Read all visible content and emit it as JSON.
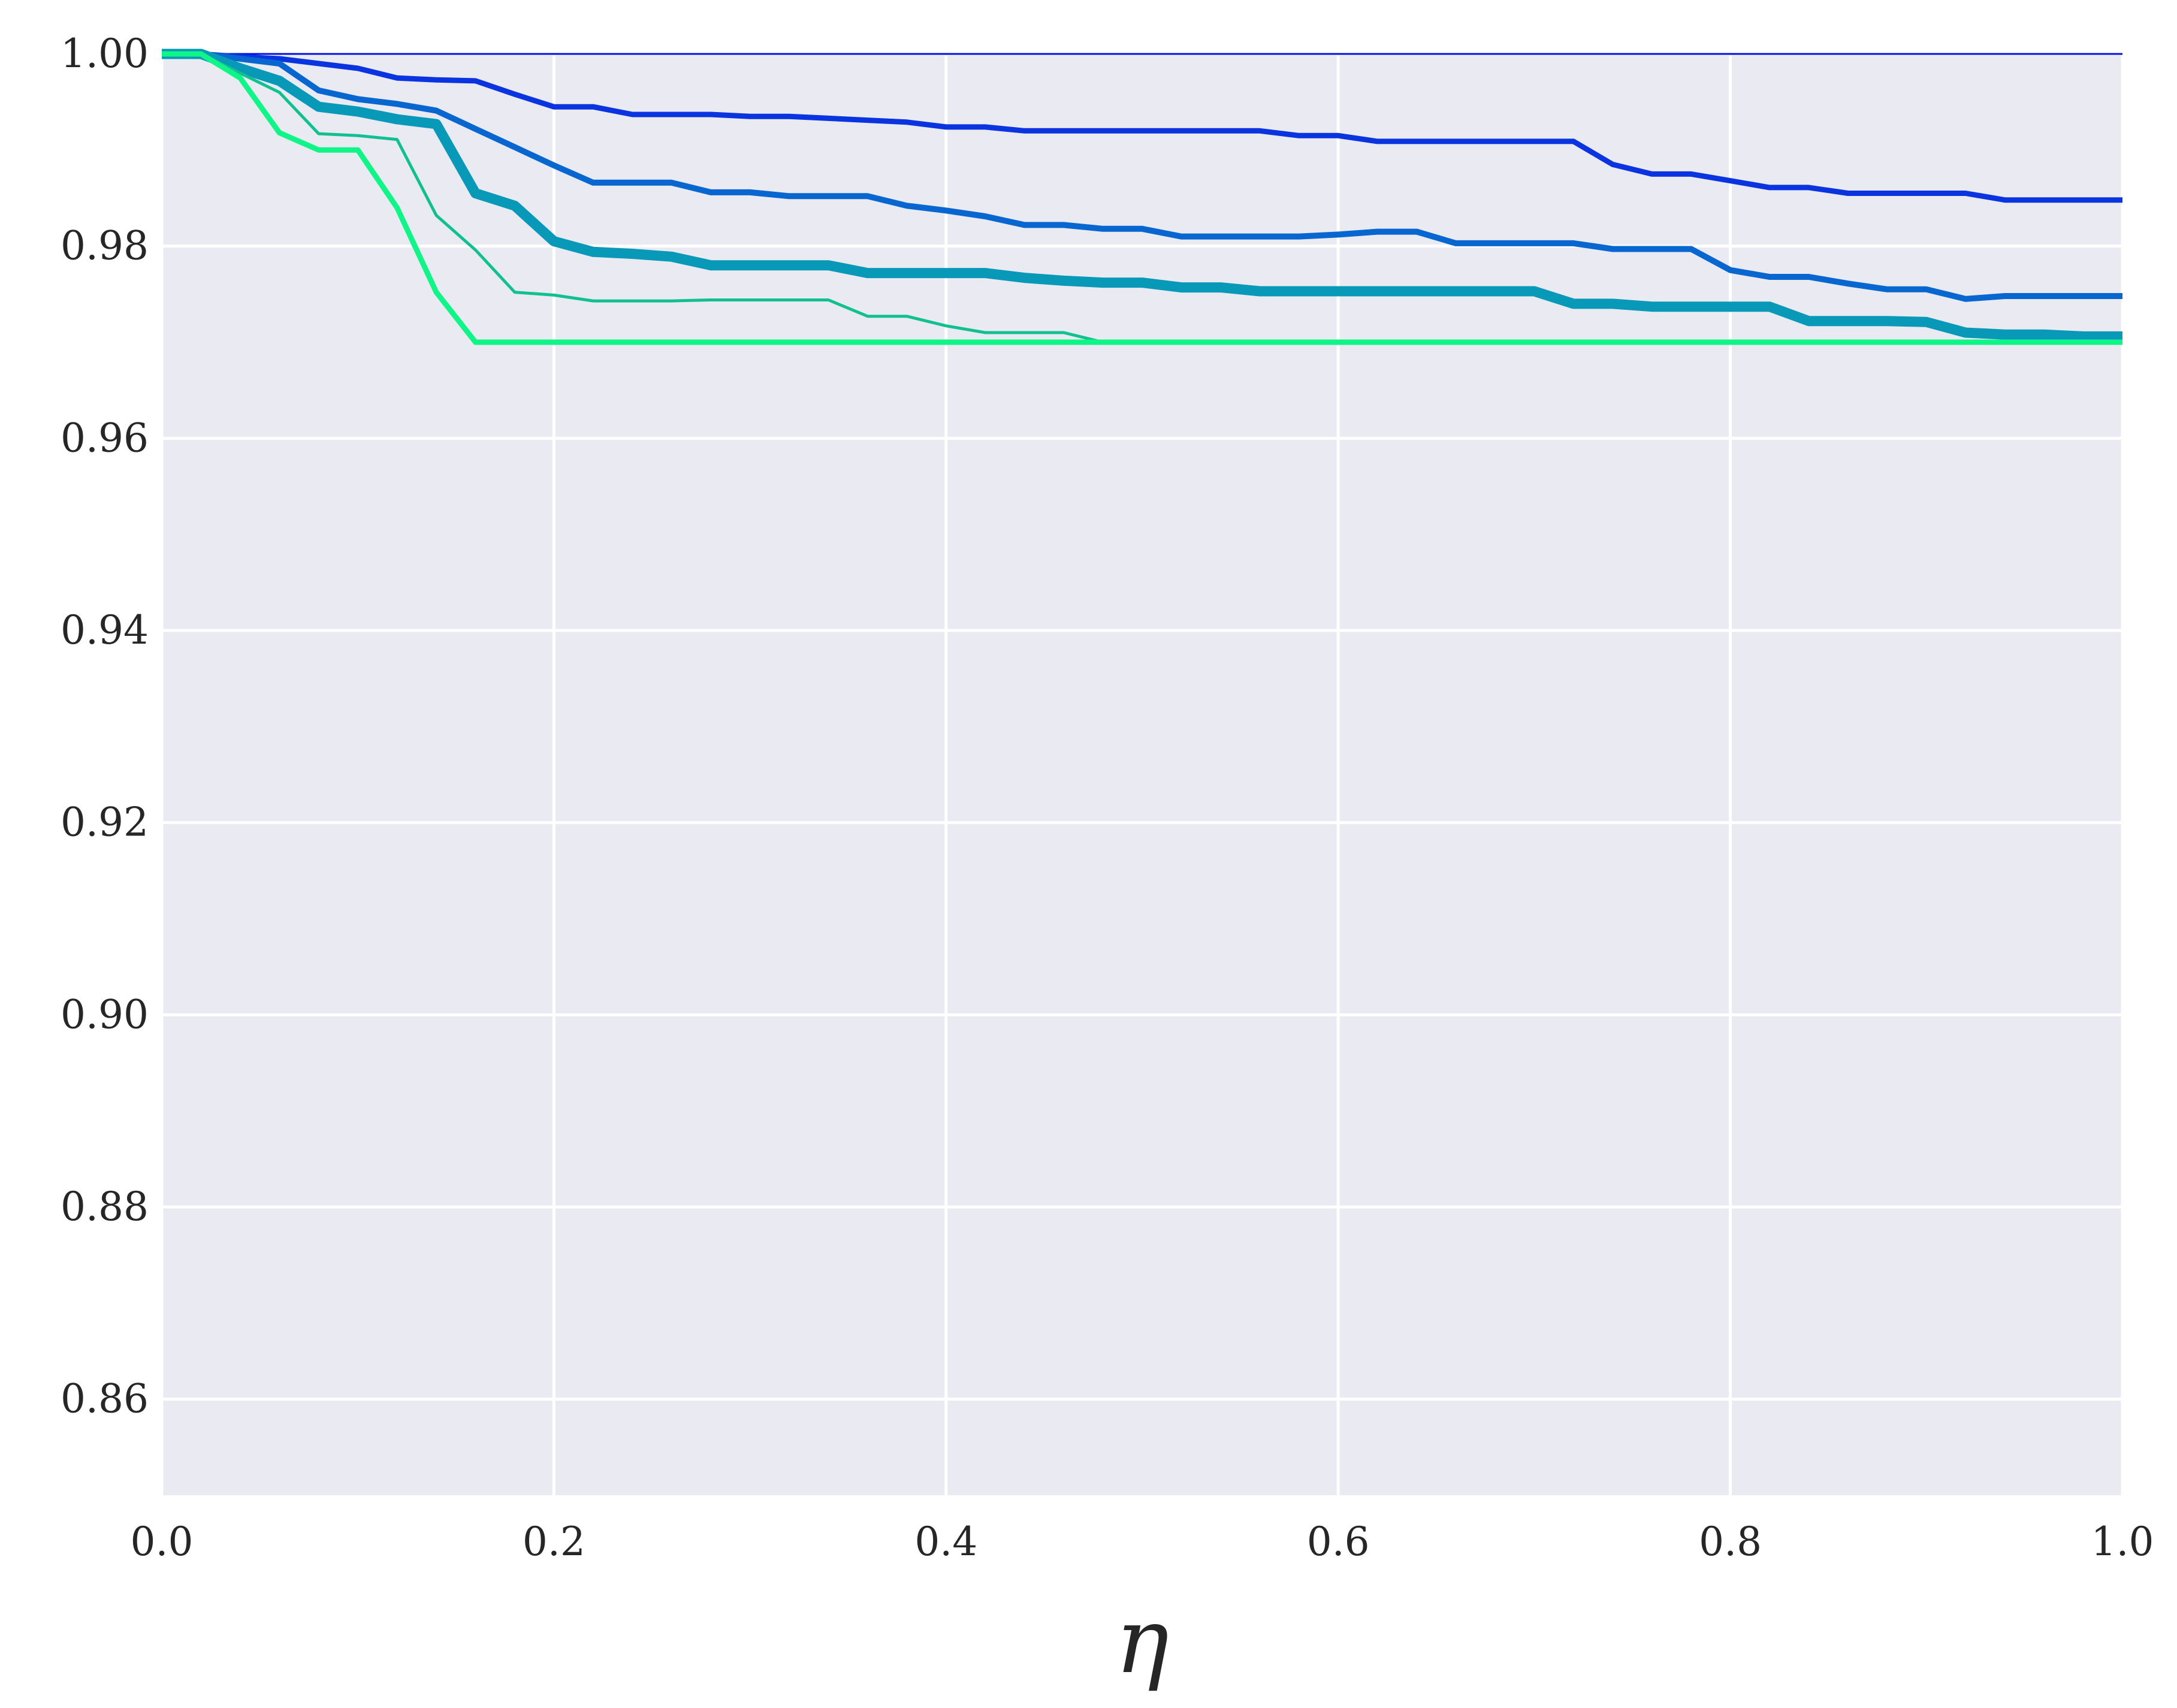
{
  "chart_data": {
    "type": "line",
    "xlabel": "η",
    "ylabel": "",
    "xlim": [
      0.0,
      1.0
    ],
    "ylim": [
      0.85,
      1.0
    ],
    "x_ticks": [
      "0.0",
      "0.2",
      "0.4",
      "0.6",
      "0.8",
      "1.0"
    ],
    "y_ticks": [
      "0.86",
      "0.88",
      "0.90",
      "0.92",
      "0.94",
      "0.96",
      "0.98",
      "1.00"
    ],
    "grid": true,
    "background_color": "#eaeaf2",
    "grid_color": "#ffffff",
    "x": [
      0.0,
      0.02,
      0.04,
      0.06,
      0.08,
      0.1,
      0.12,
      0.14,
      0.16,
      0.18,
      0.2,
      0.22,
      0.24,
      0.26,
      0.28,
      0.3,
      0.32,
      0.34,
      0.36,
      0.38,
      0.4,
      0.42,
      0.44,
      0.46,
      0.48,
      0.5,
      0.52,
      0.54,
      0.56,
      0.58,
      0.6,
      0.62,
      0.64,
      0.66,
      0.68,
      0.7,
      0.72,
      0.74,
      0.76,
      0.78,
      0.8,
      0.82,
      0.84,
      0.86,
      0.88,
      0.9,
      0.92,
      0.94,
      0.96,
      0.98,
      1.0
    ],
    "series": [
      {
        "color": "#0010e0",
        "width": 3,
        "values": [
          1.0,
          1.0,
          1.0,
          1.0,
          1.0,
          1.0,
          1.0,
          1.0,
          1.0,
          1.0,
          1.0,
          1.0,
          1.0,
          1.0,
          1.0,
          1.0,
          1.0,
          1.0,
          1.0,
          1.0,
          1.0,
          1.0,
          1.0,
          1.0,
          1.0,
          1.0,
          1.0,
          1.0,
          1.0,
          1.0,
          1.0,
          1.0,
          1.0,
          1.0,
          1.0,
          1.0,
          1.0,
          1.0,
          1.0,
          1.0,
          1.0,
          1.0,
          1.0,
          1.0,
          1.0,
          1.0,
          1.0,
          1.0,
          1.0,
          1.0,
          1.0
        ]
      },
      {
        "color": "#0a34e0",
        "width": 9,
        "values": [
          1.0,
          1.0,
          0.9997,
          0.9995,
          0.999,
          0.9985,
          0.9975,
          0.9973,
          0.9972,
          0.9958,
          0.9945,
          0.9945,
          0.9937,
          0.9937,
          0.9937,
          0.9935,
          0.9935,
          0.9933,
          0.9931,
          0.9929,
          0.9924,
          0.9924,
          0.992,
          0.992,
          0.992,
          0.992,
          0.992,
          0.992,
          0.992,
          0.9915,
          0.9915,
          0.9909,
          0.9909,
          0.9909,
          0.9909,
          0.9909,
          0.9909,
          0.9885,
          0.9875,
          0.9875,
          0.9868,
          0.9861,
          0.9861,
          0.9855,
          0.9855,
          0.9855,
          0.9855,
          0.9848,
          0.9848,
          0.9848,
          0.9848
        ]
      },
      {
        "color": "#0866d0",
        "width": 10,
        "values": [
          1.0,
          1.0,
          0.9995,
          0.999,
          0.9962,
          0.9953,
          0.9948,
          0.9941,
          0.9922,
          0.9903,
          0.9884,
          0.9866,
          0.9866,
          0.9866,
          0.9856,
          0.9856,
          0.9852,
          0.9852,
          0.9852,
          0.9842,
          0.9837,
          0.9831,
          0.9822,
          0.9822,
          0.9818,
          0.9818,
          0.981,
          0.981,
          0.981,
          0.981,
          0.9812,
          0.9815,
          0.9815,
          0.9803,
          0.9803,
          0.9803,
          0.9803,
          0.9797,
          0.9797,
          0.9797,
          0.9775,
          0.9768,
          0.9768,
          0.9761,
          0.9755,
          0.9755,
          0.9745,
          0.9748,
          0.9748,
          0.9748,
          0.9748
        ]
      },
      {
        "color": "#0898b8",
        "width": 17,
        "values": [
          1.0,
          1.0,
          0.9985,
          0.9972,
          0.9945,
          0.994,
          0.9932,
          0.9927,
          0.9855,
          0.9842,
          0.9805,
          0.9794,
          0.9792,
          0.9789,
          0.978,
          0.978,
          0.978,
          0.978,
          0.9772,
          0.9772,
          0.9772,
          0.9772,
          0.9767,
          0.9764,
          0.9762,
          0.9762,
          0.9757,
          0.9757,
          0.9753,
          0.9753,
          0.9753,
          0.9753,
          0.9753,
          0.9753,
          0.9753,
          0.9753,
          0.974,
          0.974,
          0.9737,
          0.9737,
          0.9737,
          0.9737,
          0.9722,
          0.9722,
          0.9722,
          0.9721,
          0.971,
          0.9708,
          0.9708,
          0.9706,
          0.9706
        ]
      },
      {
        "color": "#10c090",
        "width": 5,
        "values": [
          1.0,
          1.0,
          0.998,
          0.996,
          0.9917,
          0.9915,
          0.9911,
          0.9832,
          0.9796,
          0.9752,
          0.9749,
          0.9743,
          0.9743,
          0.9743,
          0.9744,
          0.9744,
          0.9744,
          0.9744,
          0.9727,
          0.9727,
          0.9717,
          0.971,
          0.971,
          0.971,
          0.97,
          0.97,
          0.97,
          0.97,
          0.97,
          0.97,
          0.97,
          0.97,
          0.97,
          0.97,
          0.97,
          0.97,
          0.97,
          0.97,
          0.97,
          0.97,
          0.97,
          0.97,
          0.97,
          0.97,
          0.97,
          0.97,
          0.97,
          0.97,
          0.97,
          0.97,
          0.97
        ]
      },
      {
        "color": "#10f588",
        "width": 9,
        "values": [
          1.0,
          1.0,
          0.9975,
          0.9918,
          0.99,
          0.99,
          0.984,
          0.9752,
          0.97,
          0.97,
          0.97,
          0.97,
          0.97,
          0.97,
          0.97,
          0.97,
          0.97,
          0.97,
          0.97,
          0.97,
          0.97,
          0.97,
          0.97,
          0.97,
          0.97,
          0.97,
          0.97,
          0.97,
          0.97,
          0.97,
          0.97,
          0.97,
          0.97,
          0.97,
          0.97,
          0.97,
          0.97,
          0.97,
          0.97,
          0.97,
          0.97,
          0.97,
          0.97,
          0.97,
          0.97,
          0.97,
          0.97,
          0.97,
          0.97,
          0.97,
          0.97
        ]
      }
    ]
  }
}
